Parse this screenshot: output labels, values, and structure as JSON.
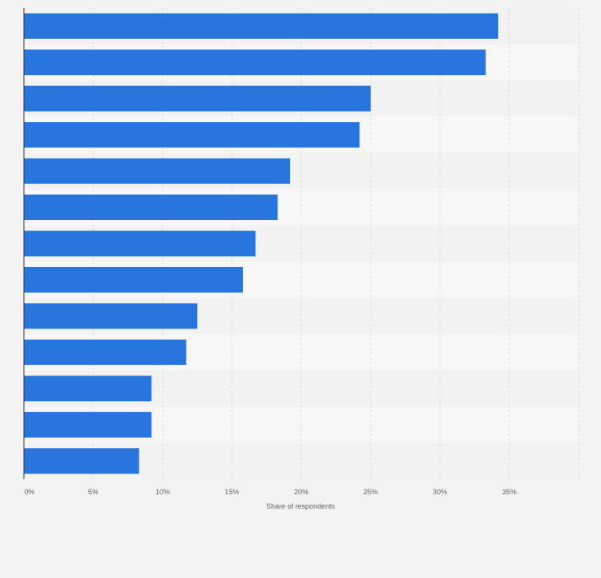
{
  "chart_data": {
    "type": "bar",
    "orientation": "horizontal",
    "title": "",
    "xlabel": "Share of respondents",
    "ylabel": "",
    "categories": [
      "",
      "",
      "",
      "",
      "",
      "",
      "",
      "",
      "",
      "",
      "",
      "",
      ""
    ],
    "values": [
      34.2,
      33.3,
      25.0,
      24.2,
      19.2,
      18.3,
      16.7,
      15.8,
      12.5,
      11.7,
      9.2,
      9.2,
      8.3
    ],
    "xlim": [
      0,
      40
    ],
    "ticks": [
      0,
      5,
      10,
      15,
      20,
      25,
      30,
      35
    ],
    "tick_labels": [
      "0%",
      "5%",
      "10%",
      "15%",
      "20%",
      "25%",
      "30%",
      "35%"
    ],
    "grid": true,
    "bar_color": "#2876dd",
    "band_colors": [
      "#f2f2f2",
      "#f7f7f7"
    ]
  }
}
